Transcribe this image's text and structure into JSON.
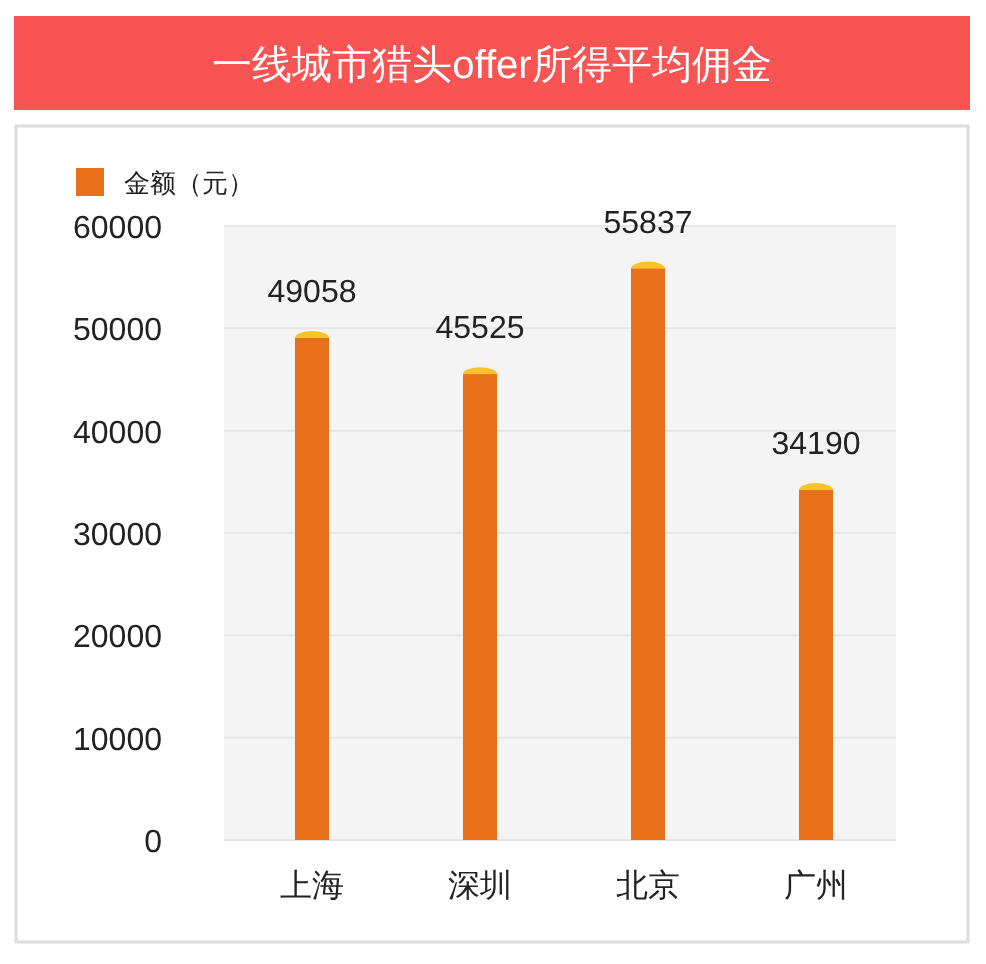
{
  "chart_data": {
    "type": "bar",
    "title": "一线城市猎头offer所得平均佣金",
    "categories": [
      "上海",
      "深圳",
      "北京",
      "广州"
    ],
    "series": [
      {
        "name": "金额（元）",
        "color": "#e8701a",
        "values": [
          49058,
          45525,
          55837,
          34190
        ]
      }
    ],
    "ylim": [
      0,
      60000
    ],
    "yticks": [
      0,
      10000,
      20000,
      30000,
      40000,
      50000,
      60000
    ],
    "grid": "y",
    "legend": "top left",
    "data_labels": true
  }
}
